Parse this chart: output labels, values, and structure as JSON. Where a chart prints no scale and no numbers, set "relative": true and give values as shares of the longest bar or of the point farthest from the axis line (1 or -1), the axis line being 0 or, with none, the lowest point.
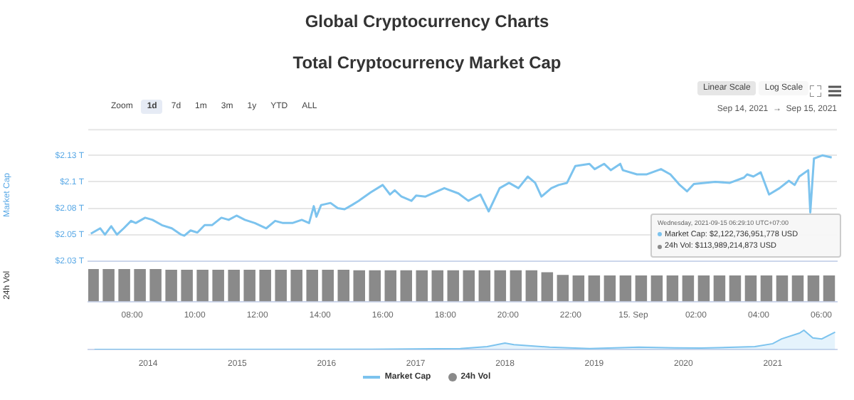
{
  "chart_data": [
    {
      "type": "line",
      "title": "Global Cryptocurrency Charts",
      "subtitle": "Total Cryptocurrency Market Cap",
      "ylabel": "Market Cap",
      "xlim": [
        "2021-09-14T06:36",
        "2021-09-15T06:30"
      ],
      "ylim": [
        2.025,
        2.15
      ],
      "yticks": [
        {
          "value": 2.025,
          "label": "$2.03 T"
        },
        {
          "value": 2.05,
          "label": "$2.05 T"
        },
        {
          "value": 2.075,
          "label": "$2.08 T"
        },
        {
          "value": 2.1,
          "label": "$2.1 T"
        },
        {
          "value": 2.125,
          "label": "$2.13 T"
        }
      ],
      "grid": "y",
      "tick_labels": "y",
      "legend": "bottom",
      "annotations": [
        "Zoom",
        "1d",
        "7d",
        "1m",
        "3m",
        "1y",
        "YTD",
        "ALL",
        "Linear Scale",
        "Log Scale",
        "Sep 14, 2021  →  Sep 15, 2021",
        "Wednesday, 2021-09-15 06:29:10 UTC+07:00",
        "Market Cap: $2,122,736,951,778 USD",
        "24h Vol: $113,989,214,873 USD"
      ],
      "series": [
        {
          "name": "Market Cap",
          "color": "#7cc3ee",
          "x": [
            "2021-09-14T06:41",
            "2021-09-14T06:59",
            "2021-09-14T07:08",
            "2021-09-14T07:20",
            "2021-09-14T07:31",
            "2021-09-14T07:44",
            "2021-09-14T07:58",
            "2021-09-14T08:07",
            "2021-09-14T08:25",
            "2021-09-14T08:39",
            "2021-09-14T08:57",
            "2021-09-14T09:16",
            "2021-09-14T09:34",
            "2021-09-14T09:40",
            "2021-09-14T09:52",
            "2021-09-14T10:05",
            "2021-09-14T10:19",
            "2021-09-14T10:33",
            "2021-09-14T10:51",
            "2021-09-14T11:05",
            "2021-09-14T11:20",
            "2021-09-14T11:36",
            "2021-09-14T11:55",
            "2021-09-14T12:17",
            "2021-09-14T12:34",
            "2021-09-14T12:49",
            "2021-09-14T13:07",
            "2021-09-14T13:25",
            "2021-09-14T13:39",
            "2021-09-14T13:48",
            "2021-09-14T13:53",
            "2021-09-14T14:02",
            "2021-09-14T14:20",
            "2021-09-14T14:34",
            "2021-09-14T14:47",
            "2021-09-14T15:01",
            "2021-09-14T15:14",
            "2021-09-14T15:37",
            "2021-09-14T16:00",
            "2021-09-14T16:14",
            "2021-09-14T16:23",
            "2021-09-14T16:36",
            "2021-09-14T16:55",
            "2021-09-14T17:04",
            "2021-09-14T17:22",
            "2021-09-14T17:58",
            "2021-09-14T18:25",
            "2021-09-14T18:44",
            "2021-09-14T19:07",
            "2021-09-14T19:23",
            "2021-09-14T19:44",
            "2021-09-14T20:02",
            "2021-09-14T20:20",
            "2021-09-14T20:38",
            "2021-09-14T20:52",
            "2021-09-14T21:04",
            "2021-09-14T21:23",
            "2021-09-14T21:37",
            "2021-09-14T21:53",
            "2021-09-14T22:09",
            "2021-09-14T22:36",
            "2021-09-14T22:46",
            "2021-09-14T23:04",
            "2021-09-14T23:17",
            "2021-09-14T23:35",
            "2021-09-14T23:40",
            "2021-09-15T00:07",
            "2021-09-15T00:25",
            "2021-09-15T00:53",
            "2021-09-15T01:11",
            "2021-09-15T01:29",
            "2021-09-15T01:43",
            "2021-09-15T01:56",
            "2021-09-15T02:37",
            "2021-09-15T03:05",
            "2021-09-15T03:32",
            "2021-09-15T03:38",
            "2021-09-15T03:50",
            "2021-09-15T04:04",
            "2021-09-15T04:20",
            "2021-09-15T04:40",
            "2021-09-15T04:58",
            "2021-09-15T05:09",
            "2021-09-15T05:18",
            "2021-09-15T05:35",
            "2021-09-15T05:39",
            "2021-09-15T05:46",
            "2021-09-15T06:02",
            "2021-09-15T06:20"
          ],
          "values": [
            2.051,
            2.056,
            2.05,
            2.058,
            2.05,
            2.056,
            2.063,
            2.061,
            2.066,
            2.064,
            2.059,
            2.056,
            2.05,
            2.049,
            2.054,
            2.052,
            2.059,
            2.059,
            2.066,
            2.064,
            2.068,
            2.064,
            2.061,
            2.056,
            2.063,
            2.061,
            2.061,
            2.064,
            2.061,
            2.077,
            2.067,
            2.078,
            2.08,
            2.075,
            2.074,
            2.078,
            2.082,
            2.09,
            2.097,
            2.088,
            2.092,
            2.086,
            2.082,
            2.087,
            2.086,
            2.094,
            2.089,
            2.082,
            2.088,
            2.072,
            2.094,
            2.099,
            2.094,
            2.105,
            2.099,
            2.086,
            2.094,
            2.097,
            2.099,
            2.115,
            2.117,
            2.112,
            2.117,
            2.111,
            2.117,
            2.111,
            2.107,
            2.107,
            2.112,
            2.107,
            2.097,
            2.091,
            2.098,
            2.1,
            2.099,
            2.104,
            2.107,
            2.105,
            2.109,
            2.088,
            2.094,
            2.101,
            2.097,
            2.105,
            2.111,
            2.071,
            2.122,
            2.125,
            2.123
          ]
        }
      ]
    },
    {
      "type": "bar",
      "ylabel": "24h Vol",
      "relative": true,
      "legend": "bottom",
      "xlim": [
        "2021-09-14T06:36",
        "2021-09-15T06:30"
      ],
      "xticks": [
        {
          "value": "2021-09-14T08:00",
          "label": "08:00"
        },
        {
          "value": "2021-09-14T10:00",
          "label": "10:00"
        },
        {
          "value": "2021-09-14T12:00",
          "label": "12:00"
        },
        {
          "value": "2021-09-14T14:00",
          "label": "14:00"
        },
        {
          "value": "2021-09-14T16:00",
          "label": "16:00"
        },
        {
          "value": "2021-09-14T18:00",
          "label": "18:00"
        },
        {
          "value": "2021-09-14T20:00",
          "label": "20:00"
        },
        {
          "value": "2021-09-14T22:00",
          "label": "22:00"
        },
        {
          "value": "2021-09-15",
          "label": "15. Sep"
        },
        {
          "value": "2021-09-15T02:00",
          "label": "02:00"
        },
        {
          "value": "2021-09-15T04:00",
          "label": "04:00"
        },
        {
          "value": "2021-09-15T06:00",
          "label": "06:00"
        }
      ],
      "series": [
        {
          "name": "24h Vol",
          "color": "#8a8a8a",
          "x": [
            "2021-09-14T06:45",
            "2021-09-14T07:15",
            "2021-09-14T07:45",
            "2021-09-14T08:15",
            "2021-09-14T08:45",
            "2021-09-14T09:15",
            "2021-09-14T09:45",
            "2021-09-14T10:15",
            "2021-09-14T10:45",
            "2021-09-14T11:15",
            "2021-09-14T11:45",
            "2021-09-14T12:15",
            "2021-09-14T12:45",
            "2021-09-14T13:15",
            "2021-09-14T13:45",
            "2021-09-14T14:15",
            "2021-09-14T14:45",
            "2021-09-14T15:15",
            "2021-09-14T15:45",
            "2021-09-14T16:15",
            "2021-09-14T16:45",
            "2021-09-14T17:15",
            "2021-09-14T17:45",
            "2021-09-14T18:15",
            "2021-09-14T18:45",
            "2021-09-14T19:15",
            "2021-09-14T19:45",
            "2021-09-14T20:15",
            "2021-09-14T20:45",
            "2021-09-14T21:15",
            "2021-09-14T21:45",
            "2021-09-14T22:15",
            "2021-09-14T22:45",
            "2021-09-14T23:15",
            "2021-09-14T23:45",
            "2021-09-15T00:15",
            "2021-09-15T00:45",
            "2021-09-15T01:15",
            "2021-09-15T01:45",
            "2021-09-15T02:15",
            "2021-09-15T02:45",
            "2021-09-15T03:15",
            "2021-09-15T03:45",
            "2021-09-15T04:15",
            "2021-09-15T04:45",
            "2021-09-15T05:15",
            "2021-09-15T05:45",
            "2021-09-15T06:15"
          ],
          "values": [
            1,
            1,
            1,
            1,
            1,
            0.98,
            0.98,
            0.98,
            0.98,
            0.98,
            0.98,
            0.98,
            0.98,
            0.98,
            0.98,
            0.98,
            0.98,
            0.96,
            0.96,
            0.96,
            0.96,
            0.96,
            0.96,
            0.96,
            0.96,
            0.96,
            0.96,
            0.96,
            0.96,
            0.9,
            0.82,
            0.8,
            0.8,
            0.8,
            0.8,
            0.8,
            0.8,
            0.8,
            0.8,
            0.8,
            0.8,
            0.8,
            0.8,
            0.8,
            0.8,
            0.8,
            0.8,
            0.8
          ]
        }
      ]
    },
    {
      "type": "area",
      "relative": true,
      "tick_labels": "x",
      "xlim": [
        2013.33,
        2021.72
      ],
      "xticks": [
        2014,
        2015,
        2016,
        2017,
        2018,
        2019,
        2020,
        2021
      ],
      "series": [
        {
          "color": "#7cc3ee",
          "x": [
            2013.4,
            2016.5,
            2017.5,
            2017.8,
            2018.0,
            2018.1,
            2018.5,
            2018.95,
            2019.5,
            2019.9,
            2020.2,
            2020.8,
            2021.0,
            2021.1,
            2021.3,
            2021.35,
            2021.45,
            2021.55,
            2021.7
          ],
          "values": [
            0,
            0.01,
            0.05,
            0.15,
            0.33,
            0.25,
            0.12,
            0.05,
            0.12,
            0.08,
            0.07,
            0.15,
            0.3,
            0.55,
            0.85,
            1,
            0.6,
            0.55,
            0.9
          ]
        }
      ]
    }
  ]
}
